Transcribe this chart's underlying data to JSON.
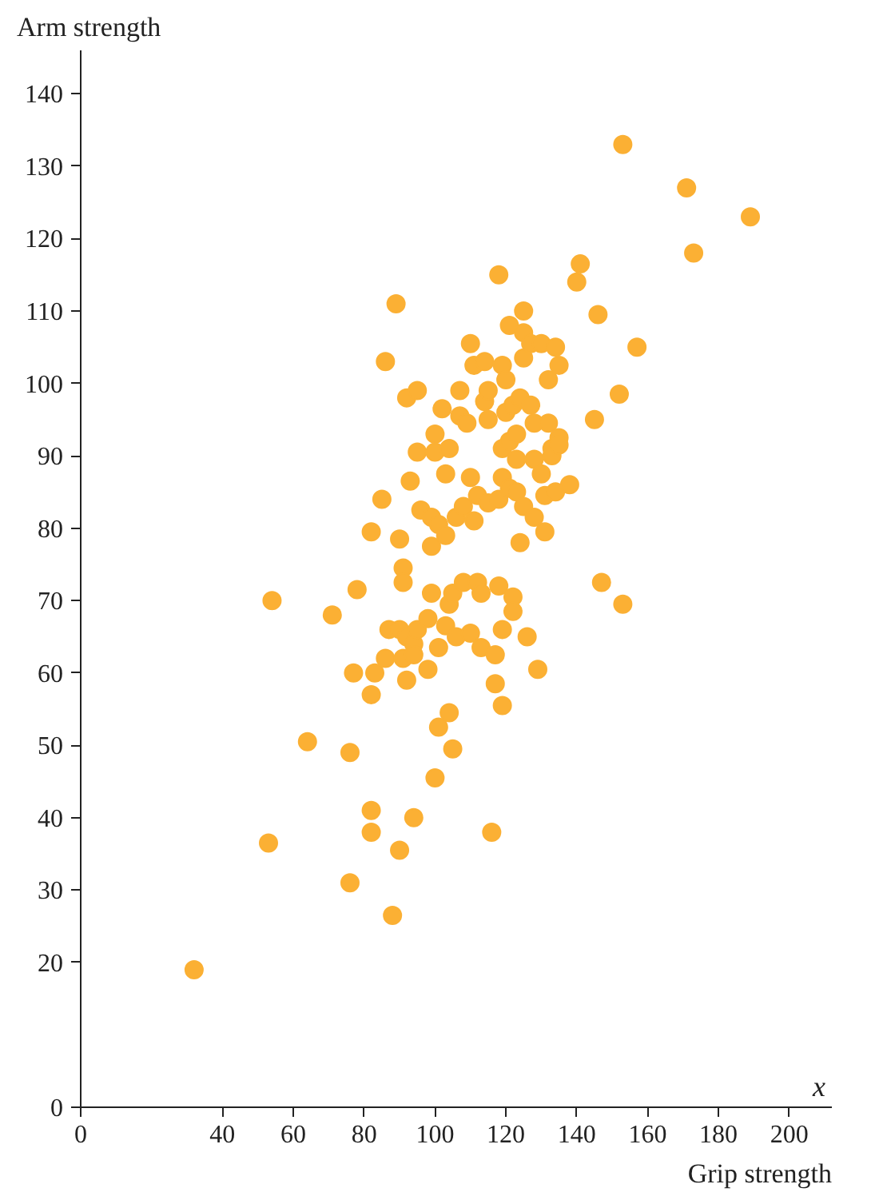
{
  "chart_data": {
    "type": "scatter",
    "ylabel": "Arm strength",
    "xlabel": "Grip strength",
    "annotations": [
      "x"
    ],
    "color": "#fbb034",
    "marker": "circle",
    "xlim": [
      0,
      212
    ],
    "ylim": [
      0,
      146
    ],
    "xticks": [
      0,
      40,
      60,
      80,
      100,
      120,
      140,
      160,
      180,
      200
    ],
    "yticks": [
      0,
      20,
      30,
      40,
      50,
      60,
      70,
      80,
      90,
      100,
      110,
      120,
      130,
      140
    ],
    "x": [
      32,
      53,
      54,
      64,
      71,
      76,
      76,
      77,
      78,
      82,
      82,
      82,
      82,
      83,
      86,
      87,
      88,
      89,
      86,
      85,
      90,
      90,
      90,
      91,
      91,
      91,
      92,
      92,
      92,
      93,
      94,
      94,
      94,
      95,
      95,
      95,
      96,
      98,
      98,
      99,
      99,
      99,
      100,
      100,
      100,
      101,
      101,
      101,
      102,
      103,
      103,
      103,
      104,
      104,
      104,
      105,
      105,
      106,
      106,
      107,
      107,
      108,
      108,
      109,
      110,
      110,
      110,
      111,
      111,
      112,
      112,
      113,
      113,
      114,
      114,
      115,
      115,
      115,
      116,
      117,
      117,
      118,
      118,
      118,
      119,
      119,
      119,
      119,
      119,
      120,
      120,
      121,
      121,
      121,
      122,
      122,
      122,
      123,
      123,
      123,
      124,
      124,
      125,
      125,
      125,
      125,
      126,
      127,
      127,
      128,
      128,
      128,
      129,
      130,
      130,
      131,
      131,
      132,
      132,
      133,
      133,
      134,
      135,
      135,
      135,
      134,
      138,
      140,
      141,
      145,
      146,
      147,
      152,
      153,
      153,
      157,
      171,
      173,
      189
    ],
    "values": [
      19,
      36.5,
      70,
      50.5,
      68,
      49,
      31,
      60,
      71.5,
      38,
      41,
      57,
      79.5,
      60,
      62,
      66,
      26.5,
      111,
      103,
      84,
      35.5,
      78.5,
      66,
      62,
      74.5,
      72.5,
      65,
      59,
      98,
      86.5,
      40,
      64,
      62.5,
      99,
      66,
      90.5,
      82.5,
      60.5,
      67.5,
      81.5,
      77.5,
      71,
      45.5,
      93,
      90.5,
      63.5,
      52.5,
      80.5,
      96.5,
      87.5,
      79,
      66.5,
      54.5,
      69.5,
      91,
      49.5,
      71,
      65,
      81.5,
      95.5,
      99,
      72.5,
      83,
      94.5,
      105.5,
      65.5,
      87,
      81,
      102.5,
      72.5,
      84.5,
      71,
      63.5,
      97.5,
      103,
      99,
      95,
      83.5,
      38,
      62.5,
      58.5,
      115,
      72,
      84,
      102.5,
      91,
      87,
      55.5,
      66,
      100.5,
      96,
      108,
      92,
      85.5,
      97,
      70.5,
      68.5,
      93,
      89.5,
      85,
      98,
      78,
      107,
      110,
      103.5,
      83,
      65,
      105.5,
      97,
      94.5,
      89.5,
      81.5,
      60.5,
      105.5,
      87.5,
      79.5,
      84.5,
      94.5,
      100.5,
      91,
      90,
      105,
      102.5,
      92.5,
      91.5,
      85,
      86,
      114,
      116.5,
      95,
      109.5,
      72.5,
      98.5,
      69.5,
      133,
      105,
      127,
      118,
      123
    ]
  }
}
